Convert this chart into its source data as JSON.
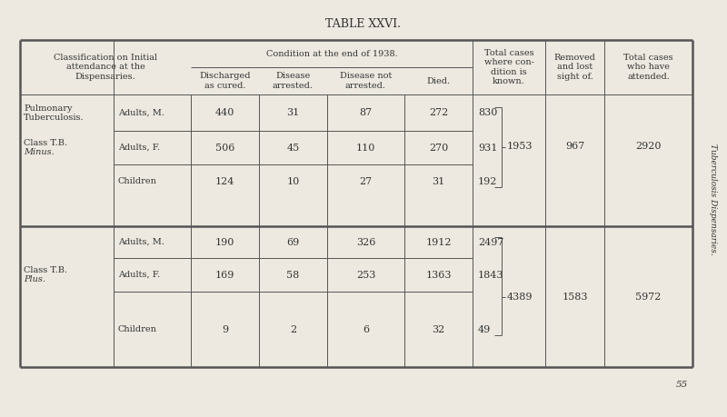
{
  "title": "TABLE XXVI.",
  "bg_color": "#ede9e0",
  "line_color": "#555555",
  "text_color": "#333333",
  "title_fontsize": 9,
  "header_fontsize": 7,
  "data_fontsize": 8,
  "label_fontsize": 7,
  "data_rows_top": [
    [
      440,
      31,
      87,
      272,
      830
    ],
    [
      506,
      45,
      110,
      270,
      931
    ],
    [
      124,
      10,
      27,
      31,
      192
    ]
  ],
  "data_rows_bottom": [
    [
      190,
      69,
      326,
      1912,
      2497
    ],
    [
      169,
      58,
      253,
      1363,
      1843
    ],
    [
      9,
      2,
      6,
      32,
      49
    ]
  ],
  "bracket_top_total": "1953",
  "bracket_top_removed": "967",
  "bracket_top_attended": "2920",
  "bracket_bottom_total": "4389",
  "bracket_bottom_removed": "1583",
  "bracket_bottom_attended": "5972",
  "side_text": "Tuberculosis Dispensaries.",
  "page_number": "55"
}
